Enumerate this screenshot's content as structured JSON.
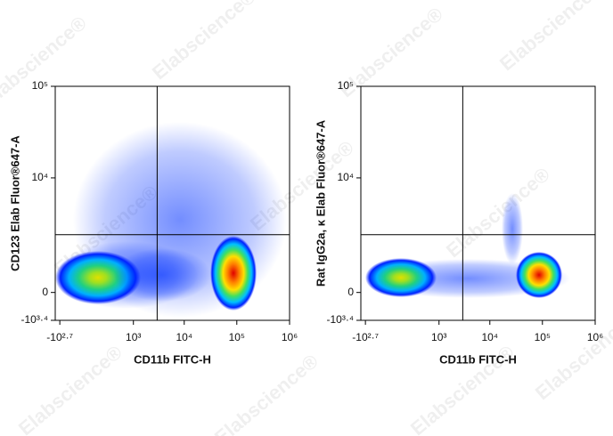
{
  "watermark": "Elabscience®",
  "chart_data": [
    {
      "type": "density",
      "xlabel": "CD11b FITC-H",
      "ylabel": "CD123 Elab Fluor®647-A",
      "xscale": "biexponential",
      "yscale": "biexponential",
      "xlim": [
        -700,
        1000000
      ],
      "ylim": [
        -2512,
        100000
      ],
      "xticks": [
        {
          "value": -501,
          "label": "-10²·⁷"
        },
        {
          "value": 1000,
          "label": "10³"
        },
        {
          "value": 10000,
          "label": "10⁴"
        },
        {
          "value": 100000,
          "label": "10⁵"
        },
        {
          "value": 1000000,
          "label": "10⁶"
        }
      ],
      "yticks": [
        {
          "value": -2512,
          "label": "-10³·⁴"
        },
        0,
        {
          "value": 10000,
          "label": "10⁴"
        },
        {
          "value": 100000,
          "label": "10⁵"
        }
      ],
      "gate": {
        "x": 3000,
        "y": 2000
      }
    },
    {
      "type": "density",
      "xlabel": "CD11b FITC-H",
      "ylabel": "Rat IgG2a, κ Elab Fluor®647-A",
      "xscale": "biexponential",
      "yscale": "biexponential",
      "xlim": [
        -700,
        1000000
      ],
      "ylim": [
        -2512,
        100000
      ],
      "xticks": [
        {
          "value": -501,
          "label": "-10²·⁷"
        },
        {
          "value": 1000,
          "label": "10³"
        },
        {
          "value": 10000,
          "label": "10⁴"
        },
        {
          "value": 100000,
          "label": "10⁵"
        },
        {
          "value": 1000000,
          "label": "10⁶"
        }
      ],
      "yticks": [
        {
          "value": -2512,
          "label": "-10³·⁴"
        },
        0,
        {
          "value": 10000,
          "label": "10⁴"
        },
        {
          "value": 100000,
          "label": "10⁵"
        }
      ],
      "gate": {
        "x": 3000,
        "y": 2000
      }
    }
  ]
}
